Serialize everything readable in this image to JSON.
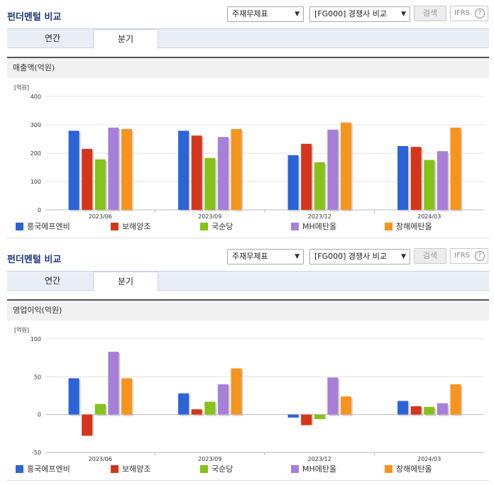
{
  "sections": [
    {
      "title": "펀더멘털 비교",
      "select1": "주재무제표",
      "select2": "[FG000] 경쟁사 비교",
      "search_label": "검색",
      "ifrs_label": "IFRS",
      "ifrs_help": "?",
      "tabs": [
        "연간",
        "분기"
      ],
      "active_tab": 1,
      "metric_title": "매출액(억원)"
    },
    {
      "title": "펀더멘털 비교",
      "select1": "주재무제표",
      "select2": "[FG000] 경쟁사 비교",
      "search_label": "검색",
      "ifrs_label": "IFRS",
      "ifrs_help": "?",
      "tabs": [
        "연간",
        "분기"
      ],
      "active_tab": 1,
      "metric_title": "영업이익(억원)"
    }
  ],
  "chart_data": [
    {
      "type": "bar",
      "unit_label": "[억원]",
      "categories": [
        "2023/06",
        "2023/09",
        "2023/12",
        "2024/03"
      ],
      "ylim": [
        0,
        400
      ],
      "yticks": [
        0,
        100,
        200,
        300,
        400
      ],
      "grid": true,
      "legend_position": "bottom",
      "series": [
        {
          "name": "흥국에프엔비",
          "color": "#2a64d8",
          "values": [
            279,
            279,
            193,
            225
          ]
        },
        {
          "name": "보해양조",
          "color": "#d5361a",
          "values": [
            215,
            262,
            233,
            222
          ]
        },
        {
          "name": "국순당",
          "color": "#86c21a",
          "values": [
            178,
            183,
            168,
            176
          ]
        },
        {
          "name": "MH에탄올",
          "color": "#a77ed8",
          "values": [
            290,
            257,
            283,
            207
          ]
        },
        {
          "name": "창해에탄올",
          "color": "#f7941d",
          "values": [
            285,
            285,
            308,
            290
          ]
        }
      ]
    },
    {
      "type": "bar",
      "unit_label": "[억원]",
      "categories": [
        "2023/06",
        "2023/09",
        "2023/12",
        "2024/03"
      ],
      "ylim": [
        -50,
        100
      ],
      "yticks": [
        -50,
        0,
        50,
        100
      ],
      "grid": true,
      "legend_position": "bottom",
      "series": [
        {
          "name": "흥국에프엔비",
          "color": "#2a64d8",
          "values": [
            48,
            28,
            -4,
            18
          ]
        },
        {
          "name": "보해양조",
          "color": "#d5361a",
          "values": [
            -28,
            7,
            -14,
            11
          ]
        },
        {
          "name": "국순당",
          "color": "#86c21a",
          "values": [
            14,
            17,
            -6,
            10
          ]
        },
        {
          "name": "MH에탄올",
          "color": "#a77ed8",
          "values": [
            83,
            40,
            49,
            15
          ]
        },
        {
          "name": "창해에탄올",
          "color": "#f7941d",
          "values": [
            48,
            61,
            24,
            40
          ]
        }
      ]
    }
  ]
}
